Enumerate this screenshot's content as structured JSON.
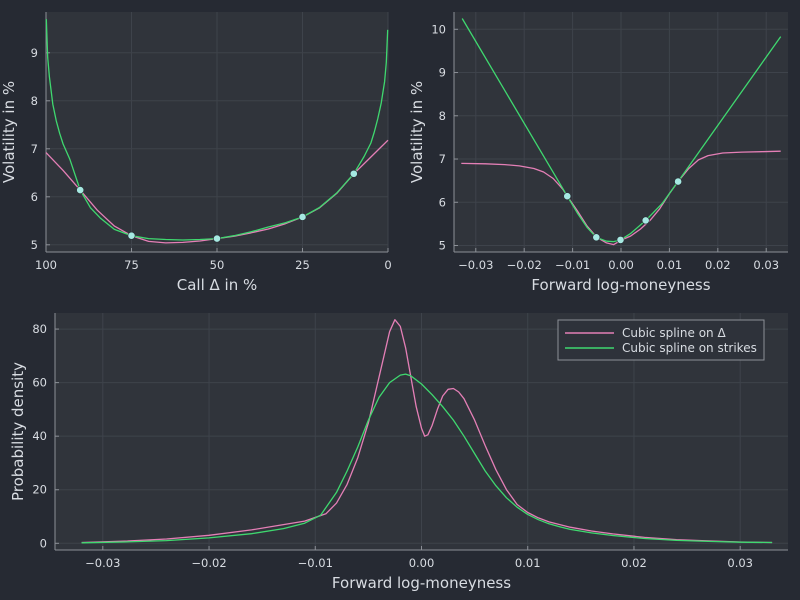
{
  "colors": {
    "background": "#262a33",
    "plot_background": "#30343b",
    "grid": "#3e434b",
    "series_delta": "#e47fb6",
    "series_strikes": "#3fd86f",
    "quote_marker": "#a6e9e2"
  },
  "chart_data": [
    {
      "id": "top-left",
      "type": "line",
      "xlabel": "Call Δ in %",
      "ylabel": "Volatility in %",
      "xlim": [
        100,
        0
      ],
      "xreversed": true,
      "ylim": [
        4.85,
        9.85
      ],
      "xticks": [
        100,
        75,
        50,
        25,
        0
      ],
      "xtick_labels": [
        "100",
        "75",
        "50",
        "25",
        "0"
      ],
      "yticks": [
        5,
        6,
        7,
        8,
        9
      ],
      "ytick_labels": [
        "5",
        "6",
        "7",
        "8",
        "9"
      ],
      "grid": true,
      "quotes": {
        "x": [
          90,
          75,
          50,
          25,
          10
        ],
        "y": [
          6.14,
          5.19,
          5.13,
          5.58,
          6.48
        ]
      },
      "series": [
        {
          "color_key": "series_delta",
          "x": [
            100,
            95,
            90,
            85,
            80,
            75,
            70,
            65,
            60,
            55,
            50,
            45,
            40,
            35,
            30,
            25,
            20,
            15,
            10,
            5,
            0
          ],
          "y": [
            6.92,
            6.55,
            6.14,
            5.72,
            5.39,
            5.19,
            5.07,
            5.04,
            5.05,
            5.08,
            5.13,
            5.18,
            5.25,
            5.33,
            5.44,
            5.58,
            5.77,
            6.07,
            6.48,
            6.83,
            7.18
          ]
        },
        {
          "color_key": "series_strikes",
          "x": [
            99.9,
            99.5,
            99,
            98,
            97,
            96,
            95,
            93,
            90,
            87,
            84,
            80,
            75,
            70,
            65,
            60,
            55,
            50,
            45,
            40,
            35,
            30,
            25,
            20,
            15,
            10,
            7,
            5,
            4,
            3,
            2,
            1,
            0.5,
            0.1
          ],
          "y": [
            9.7,
            8.9,
            8.5,
            7.93,
            7.58,
            7.32,
            7.1,
            6.78,
            6.14,
            5.77,
            5.55,
            5.32,
            5.19,
            5.13,
            5.11,
            5.1,
            5.11,
            5.13,
            5.19,
            5.27,
            5.37,
            5.46,
            5.58,
            5.78,
            6.08,
            6.48,
            6.84,
            7.12,
            7.35,
            7.62,
            7.95,
            8.4,
            8.8,
            9.48
          ]
        }
      ]
    },
    {
      "id": "top-right",
      "type": "line",
      "xlabel": "Forward log-moneyness",
      "ylabel": "Volatility in %",
      "xlim": [
        -0.0345,
        0.0345
      ],
      "ylim": [
        4.85,
        10.4
      ],
      "xticks": [
        -0.03,
        -0.02,
        -0.01,
        0,
        0.01,
        0.02,
        0.03
      ],
      "xtick_labels": [
        "−0.03",
        "−0.02",
        "−0.01",
        "0.00",
        "0.01",
        "0.02",
        "0.03"
      ],
      "yticks": [
        5,
        6,
        7,
        8,
        9,
        10
      ],
      "ytick_labels": [
        "5",
        "6",
        "7",
        "8",
        "9",
        "10"
      ],
      "grid": true,
      "quotes": {
        "x": [
          -0.0111,
          -0.0051,
          -0.0001,
          0.0051,
          0.0118
        ],
        "y": [
          6.14,
          5.19,
          5.13,
          5.58,
          6.48
        ]
      },
      "series": [
        {
          "color_key": "series_delta",
          "x": [
            -0.033,
            -0.028,
            -0.024,
            -0.021,
            -0.018,
            -0.016,
            -0.014,
            -0.012,
            -0.0111,
            -0.009,
            -0.007,
            -0.005,
            -0.003,
            -0.0015,
            0,
            0.002,
            0.004,
            0.006,
            0.008,
            0.01,
            0.0118,
            0.014,
            0.016,
            0.018,
            0.021,
            0.025,
            0.029,
            0.033
          ],
          "y": [
            6.9,
            6.89,
            6.87,
            6.84,
            6.78,
            6.7,
            6.55,
            6.3,
            6.14,
            5.8,
            5.45,
            5.19,
            5.06,
            5.02,
            5.12,
            5.22,
            5.38,
            5.58,
            5.85,
            6.2,
            6.48,
            6.78,
            6.98,
            7.08,
            7.14,
            7.16,
            7.17,
            7.18
          ]
        },
        {
          "color_key": "series_strikes",
          "x": [
            -0.0328,
            -0.0111,
            -0.009,
            -0.007,
            -0.0051,
            -0.003,
            -0.0015,
            -0.0001,
            0.002,
            0.0051,
            0.0085,
            0.0118,
            0.033
          ],
          "y": [
            10.25,
            6.14,
            5.75,
            5.42,
            5.19,
            5.1,
            5.09,
            5.13,
            5.28,
            5.58,
            5.97,
            6.48,
            9.83
          ]
        }
      ]
    },
    {
      "id": "bottom",
      "type": "line",
      "xlabel": "Forward log-moneyness",
      "ylabel": "Probability density",
      "xlim": [
        -0.0345,
        0.0345
      ],
      "ylim": [
        -2.5,
        86
      ],
      "xticks": [
        -0.03,
        -0.02,
        -0.01,
        0,
        0.01,
        0.02,
        0.03
      ],
      "xtick_labels": [
        "−0.03",
        "−0.02",
        "−0.01",
        "0.00",
        "0.01",
        "0.02",
        "0.03"
      ],
      "yticks": [
        0,
        20,
        40,
        60,
        80
      ],
      "ytick_labels": [
        "0",
        "20",
        "40",
        "60",
        "80"
      ],
      "grid": true,
      "legend": {
        "position": "top-right"
      },
      "series": [
        {
          "name": "Cubic spline on Δ",
          "color_key": "series_delta",
          "x": [
            -0.032,
            -0.028,
            -0.024,
            -0.02,
            -0.016,
            -0.013,
            -0.011,
            -0.009,
            -0.008,
            -0.007,
            -0.006,
            -0.005,
            -0.004,
            -0.003,
            -0.0025,
            -0.002,
            -0.0015,
            -0.001,
            -0.0005,
            0,
            0.0003,
            0.0006,
            0.001,
            0.0015,
            0.002,
            0.0025,
            0.003,
            0.0035,
            0.004,
            0.005,
            0.006,
            0.007,
            0.008,
            0.009,
            0.01,
            0.011,
            0.012,
            0.014,
            0.016,
            0.018,
            0.021,
            0.024,
            0.027,
            0.03,
            0.033
          ],
          "y": [
            0.3,
            0.8,
            1.6,
            3.0,
            5.0,
            7.0,
            8.3,
            11.0,
            15.0,
            22.0,
            32.0,
            45.0,
            62.0,
            79.0,
            83.5,
            81.0,
            73.0,
            62.0,
            51.0,
            43.0,
            40.0,
            40.5,
            44.0,
            50.0,
            55.0,
            57.5,
            57.8,
            56.5,
            54.0,
            46.0,
            36.5,
            27.5,
            20.0,
            14.5,
            11.5,
            9.5,
            8.0,
            6.0,
            4.6,
            3.5,
            2.2,
            1.4,
            0.9,
            0.5,
            0.3
          ]
        },
        {
          "name": "Cubic spline on strikes",
          "color_key": "series_strikes",
          "x": [
            -0.032,
            -0.028,
            -0.024,
            -0.02,
            -0.016,
            -0.013,
            -0.011,
            -0.0095,
            -0.008,
            -0.007,
            -0.006,
            -0.005,
            -0.004,
            -0.003,
            -0.002,
            -0.0015,
            -0.001,
            0,
            0.001,
            0.002,
            0.003,
            0.004,
            0.005,
            0.006,
            0.007,
            0.008,
            0.009,
            0.01,
            0.011,
            0.012,
            0.013,
            0.014,
            0.016,
            0.018,
            0.021,
            0.024,
            0.027,
            0.03,
            0.033
          ],
          "y": [
            0.2,
            0.5,
            1.0,
            2.0,
            3.6,
            5.5,
            7.5,
            10.5,
            19.0,
            27.0,
            36.0,
            46.0,
            54.5,
            60.0,
            62.8,
            63.2,
            62.5,
            59.5,
            55.5,
            51.0,
            46.0,
            40.0,
            33.5,
            27.0,
            21.5,
            17.0,
            13.5,
            10.8,
            8.8,
            7.3,
            6.2,
            5.2,
            3.9,
            2.9,
            1.8,
            1.1,
            0.7,
            0.4,
            0.3
          ]
        }
      ]
    }
  ]
}
